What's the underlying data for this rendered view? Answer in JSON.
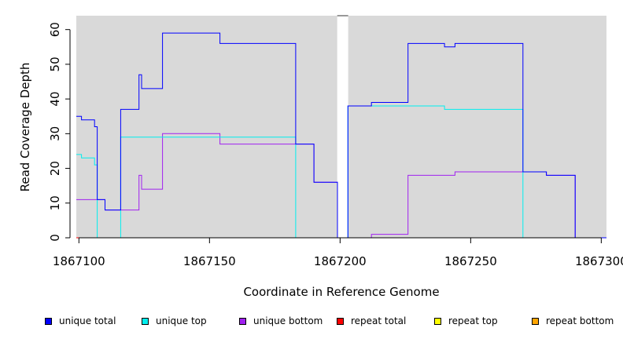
{
  "chart_data": {
    "type": "line",
    "step": true,
    "xlabel": "Coordinate in Reference Genome",
    "ylabel": "Read Coverage Depth",
    "xlim": [
      1867099,
      1867302
    ],
    "ylim": [
      0,
      64
    ],
    "x_ticks": [
      1867100,
      1867150,
      1867200,
      1867250,
      1867300
    ],
    "x_tick_labels": [
      "1867100",
      "1867150",
      "1867200",
      "1867250",
      "1867300"
    ],
    "y_ticks": [
      0,
      10,
      20,
      30,
      40,
      50,
      60
    ],
    "y_tick_labels": [
      "0",
      "10",
      "20",
      "30",
      "40",
      "50",
      "60"
    ],
    "background_color": "#d9d9d9",
    "gap": [
      1867198.9,
      1867203.1
    ],
    "grid": false,
    "legend_position": "bottom",
    "series": [
      {
        "name": "unique total",
        "color": "#0000ff",
        "points": [
          [
            1867099,
            35
          ],
          [
            1867101,
            34
          ],
          [
            1867106,
            32
          ],
          [
            1867107,
            11
          ],
          [
            1867110,
            8
          ],
          [
            1867116,
            37
          ],
          [
            1867123,
            47
          ],
          [
            1867124,
            43
          ],
          [
            1867132,
            59
          ],
          [
            1867154,
            56
          ],
          [
            1867183,
            27
          ],
          [
            1867190,
            16
          ],
          [
            1867199,
            0
          ],
          [
            1867203,
            38
          ],
          [
            1867212,
            39
          ],
          [
            1867226,
            56
          ],
          [
            1867240,
            55
          ],
          [
            1867244,
            56
          ],
          [
            1867270,
            19
          ],
          [
            1867279,
            18
          ],
          [
            1867290,
            0
          ],
          [
            1867302,
            0
          ]
        ]
      },
      {
        "name": "unique top",
        "color": "#00eeee",
        "points": [
          [
            1867099,
            24
          ],
          [
            1867101,
            23
          ],
          [
            1867106,
            21
          ],
          [
            1867107,
            0
          ],
          [
            1867116,
            29
          ],
          [
            1867183,
            0
          ],
          [
            1867199,
            0
          ],
          [
            1867203,
            38
          ],
          [
            1867240,
            37
          ],
          [
            1867270,
            0
          ],
          [
            1867302,
            0
          ]
        ]
      },
      {
        "name": "unique bottom",
        "color": "#a020f0",
        "points": [
          [
            1867099,
            11
          ],
          [
            1867110,
            8
          ],
          [
            1867123,
            18
          ],
          [
            1867124,
            14
          ],
          [
            1867132,
            30
          ],
          [
            1867154,
            27
          ],
          [
            1867183,
            27
          ],
          [
            1867190,
            16
          ],
          [
            1867199,
            0
          ],
          [
            1867212,
            1
          ],
          [
            1867226,
            18
          ],
          [
            1867244,
            19
          ],
          [
            1867270,
            19
          ],
          [
            1867279,
            18
          ],
          [
            1867290,
            0
          ],
          [
            1867302,
            0
          ]
        ]
      },
      {
        "name": "repeat total",
        "color": "#ff0000",
        "points": [
          [
            1867099,
            0
          ],
          [
            1867302,
            0
          ]
        ]
      },
      {
        "name": "repeat top",
        "color": "#ffff00",
        "points": [
          [
            1867099,
            0
          ],
          [
            1867302,
            0
          ]
        ]
      },
      {
        "name": "repeat bottom",
        "color": "#ffa500",
        "points": [
          [
            1867099,
            0
          ],
          [
            1867302,
            0
          ]
        ]
      }
    ]
  }
}
